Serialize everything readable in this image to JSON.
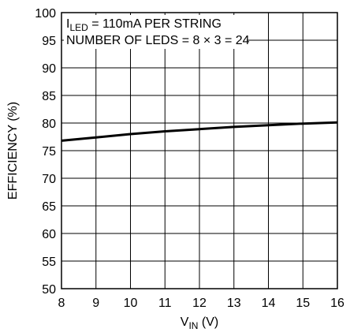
{
  "chart_data": {
    "type": "line",
    "title": "",
    "xlabel": {
      "main": "V",
      "sub": "IN",
      "rest": " (V)"
    },
    "ylabel": "EFFICIENCY (%)",
    "xlim": [
      8,
      16
    ],
    "ylim": [
      50,
      100
    ],
    "xticks": [
      8,
      9,
      10,
      11,
      12,
      13,
      14,
      15,
      16
    ],
    "yticks": [
      50,
      55,
      60,
      65,
      70,
      75,
      80,
      85,
      90,
      95,
      100
    ],
    "grid": true,
    "legend": "none",
    "annotations": {
      "line1": {
        "main": "I",
        "sub": "LED",
        "rest": " = 110mA PER STRING"
      },
      "line2": "NUMBER OF LEDS = 8 × 3 = 24"
    },
    "series": [
      {
        "color": "#000000",
        "x": [
          8,
          9,
          10,
          11,
          12,
          13,
          14,
          15,
          16
        ],
        "y": [
          76.8,
          77.4,
          78.0,
          78.5,
          78.9,
          79.3,
          79.6,
          79.9,
          80.1
        ]
      }
    ]
  }
}
